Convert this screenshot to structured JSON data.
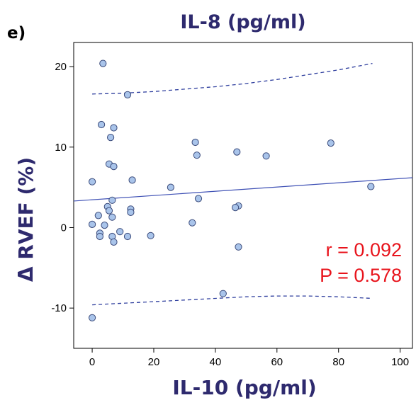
{
  "panel_label": "e)",
  "colors": {
    "title": "#2e2a6e",
    "point_fill": "#a9c4ea",
    "point_stroke": "#3a4a7a",
    "fit_line": "#3f51b5",
    "ci_line": "#2f3f9e",
    "stats": "#e8141c"
  },
  "chart_data": {
    "type": "scatter",
    "title": "IL-8 (pg/ml)",
    "xlabel": "IL-10 (pg/ml)",
    "ylabel": "Δ RVEF (%)",
    "xlim": [
      -6,
      104
    ],
    "ylim": [
      -15,
      23
    ],
    "x_ticks": [
      0,
      20,
      40,
      60,
      80,
      100
    ],
    "y_ticks": [
      -10,
      0,
      10,
      20
    ],
    "grid": false,
    "points": [
      {
        "x": 3.5,
        "y": 20.4
      },
      {
        "x": 11.5,
        "y": 16.5
      },
      {
        "x": 3,
        "y": 12.8
      },
      {
        "x": 7,
        "y": 12.4
      },
      {
        "x": 6,
        "y": 11.2
      },
      {
        "x": 33.5,
        "y": 10.6
      },
      {
        "x": 77.5,
        "y": 10.5
      },
      {
        "x": 47,
        "y": 9.4
      },
      {
        "x": 34,
        "y": 9.0
      },
      {
        "x": 56.5,
        "y": 8.9
      },
      {
        "x": 5.5,
        "y": 7.9
      },
      {
        "x": 7,
        "y": 7.6
      },
      {
        "x": 13,
        "y": 5.9
      },
      {
        "x": 0,
        "y": 5.7
      },
      {
        "x": 90.5,
        "y": 5.1
      },
      {
        "x": 25.5,
        "y": 5.0
      },
      {
        "x": 34.5,
        "y": 3.6
      },
      {
        "x": 6.5,
        "y": 3.4
      },
      {
        "x": 47.5,
        "y": 2.7
      },
      {
        "x": 46.5,
        "y": 2.5
      },
      {
        "x": 5,
        "y": 2.6
      },
      {
        "x": 12.5,
        "y": 2.3
      },
      {
        "x": 5.5,
        "y": 2.1
      },
      {
        "x": 12.5,
        "y": 1.9
      },
      {
        "x": 2,
        "y": 1.5
      },
      {
        "x": 6.5,
        "y": 1.3
      },
      {
        "x": 32.5,
        "y": 0.6
      },
      {
        "x": 0,
        "y": 0.4
      },
      {
        "x": 4,
        "y": 0.3
      },
      {
        "x": 9,
        "y": -0.5
      },
      {
        "x": 2.5,
        "y": -0.7
      },
      {
        "x": 2.5,
        "y": -1.1
      },
      {
        "x": 6.5,
        "y": -1.1
      },
      {
        "x": 11.5,
        "y": -1.1
      },
      {
        "x": 19,
        "y": -1.0
      },
      {
        "x": 7,
        "y": -1.8
      },
      {
        "x": 47.5,
        "y": -2.4
      },
      {
        "x": 42.5,
        "y": -8.2
      },
      {
        "x": 0,
        "y": -11.2
      }
    ],
    "fit_line": {
      "x": [
        -6,
        104
      ],
      "y": [
        3.3,
        6.2
      ]
    },
    "ci_upper": {
      "x": [
        0,
        10,
        20,
        30,
        40,
        50,
        60,
        70,
        80,
        91
      ],
      "y": [
        16.6,
        16.7,
        16.9,
        17.2,
        17.5,
        17.9,
        18.4,
        19.0,
        19.6,
        20.4
      ]
    },
    "ci_lower": {
      "x": [
        0,
        10,
        20,
        30,
        40,
        50,
        60,
        70,
        80,
        91
      ],
      "y": [
        -9.6,
        -9.4,
        -9.2,
        -9.0,
        -8.8,
        -8.6,
        -8.5,
        -8.5,
        -8.6,
        -8.8
      ]
    },
    "annotations": {
      "r": "r = 0.092",
      "p": "P = 0.578"
    }
  }
}
